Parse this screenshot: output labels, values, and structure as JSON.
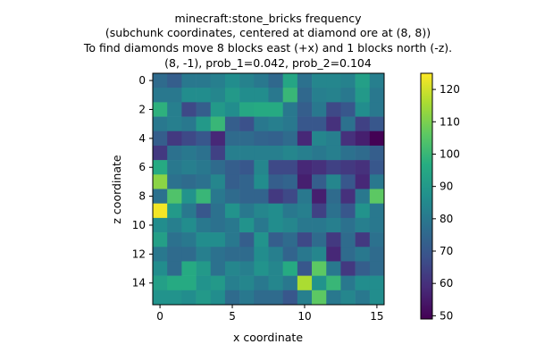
{
  "chart_data": {
    "type": "heatmap",
    "title_lines": [
      "minecraft:stone_bricks frequency",
      "(subchunk coordinates, centered at diamond ore at (8, 8))",
      "To find diamonds move 8 blocks east (+x) and 1 blocks north (-z).",
      "(8, -1), prob_1=0.042, prob_2=0.104"
    ],
    "xlabel": "x coordinate",
    "ylabel": "z coordinate",
    "x_ticks": [
      0,
      5,
      10,
      15
    ],
    "y_ticks": [
      0,
      2,
      4,
      6,
      8,
      10,
      12,
      14
    ],
    "colorbar_ticks": [
      50,
      60,
      70,
      80,
      90,
      100,
      110,
      120
    ],
    "vmin": 49,
    "vmax": 125,
    "colormap": "viridis",
    "values": [
      [
        76,
        72,
        80,
        80,
        82,
        86,
        83,
        80,
        75,
        94,
        78,
        84,
        84,
        83,
        92,
        82
      ],
      [
        80,
        80,
        86,
        86,
        84,
        90,
        86,
        86,
        80,
        100,
        75,
        82,
        83,
        80,
        90,
        80
      ],
      [
        98,
        82,
        66,
        72,
        90,
        86,
        95,
        96,
        96,
        80,
        72,
        80,
        66,
        70,
        86,
        80
      ],
      [
        80,
        82,
        80,
        90,
        100,
        72,
        68,
        80,
        82,
        80,
        70,
        70,
        60,
        78,
        64,
        70
      ],
      [
        72,
        62,
        66,
        70,
        58,
        76,
        76,
        74,
        73,
        76,
        58,
        84,
        82,
        60,
        56,
        49
      ],
      [
        62,
        78,
        80,
        78,
        64,
        82,
        82,
        82,
        82,
        84,
        82,
        80,
        82,
        78,
        76,
        72
      ],
      [
        96,
        80,
        82,
        80,
        76,
        72,
        70,
        84,
        66,
        66,
        58,
        60,
        64,
        62,
        60,
        70
      ],
      [
        112,
        78,
        76,
        78,
        84,
        72,
        74,
        86,
        72,
        74,
        56,
        72,
        84,
        70,
        58,
        80
      ],
      [
        78,
        104,
        88,
        100,
        80,
        76,
        74,
        74,
        62,
        66,
        80,
        56,
        76,
        60,
        80,
        106
      ],
      [
        124,
        90,
        80,
        70,
        78,
        88,
        80,
        84,
        86,
        80,
        82,
        64,
        78,
        70,
        88,
        80
      ],
      [
        86,
        82,
        86,
        80,
        78,
        80,
        88,
        80,
        86,
        84,
        80,
        80,
        82,
        78,
        82,
        80
      ],
      [
        92,
        78,
        80,
        86,
        86,
        80,
        72,
        88,
        72,
        76,
        66,
        76,
        62,
        76,
        62,
        78
      ],
      [
        80,
        76,
        76,
        82,
        78,
        76,
        76,
        86,
        82,
        74,
        80,
        84,
        58,
        76,
        80,
        76
      ],
      [
        86,
        76,
        96,
        90,
        78,
        84,
        82,
        88,
        84,
        96,
        70,
        106,
        80,
        62,
        72,
        76
      ],
      [
        92,
        96,
        96,
        88,
        90,
        82,
        84,
        80,
        84,
        80,
        116,
        88,
        100,
        80,
        86,
        86
      ],
      [
        88,
        88,
        86,
        90,
        86,
        76,
        80,
        76,
        76,
        70,
        82,
        106,
        80,
        84,
        80,
        86
      ]
    ]
  }
}
